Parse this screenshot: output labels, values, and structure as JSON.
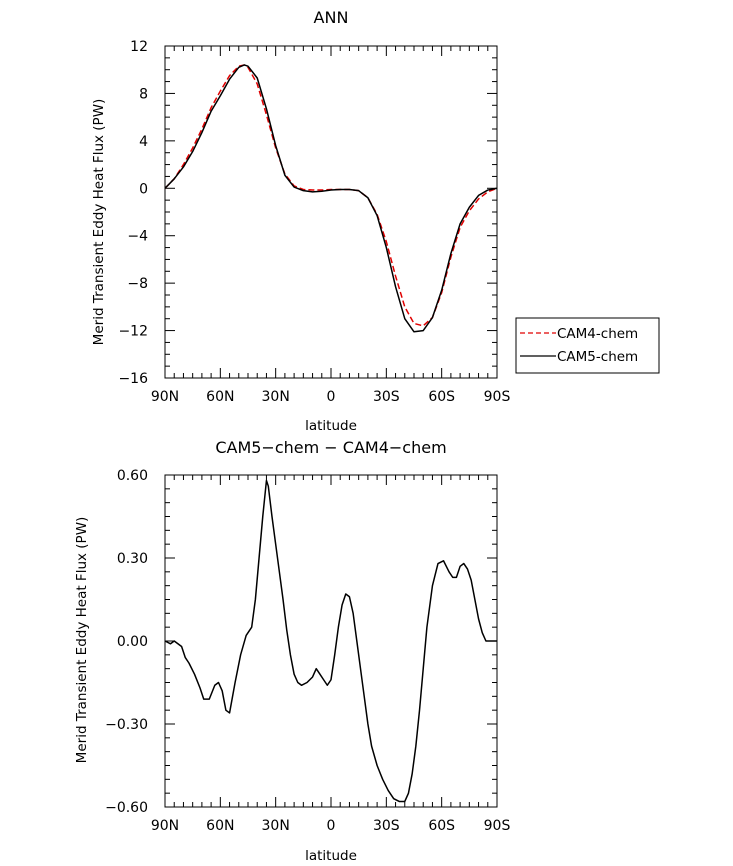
{
  "chart_data": [
    {
      "type": "line",
      "title": "ANN",
      "xlabel": "latitude",
      "ylabel": "Merid Transient Eddy Heat Flux (PW)",
      "xlim": [
        -90,
        90
      ],
      "ylim": [
        -16,
        12
      ],
      "x_tick_values": [
        -90,
        -60,
        -30,
        0,
        30,
        60,
        90
      ],
      "x_tick_labels": [
        "90N",
        "60N",
        "30N",
        "0",
        "30S",
        "60S",
        "90S"
      ],
      "y_tick_values": [
        -16,
        -12,
        -8,
        -4,
        0,
        4,
        8,
        12
      ],
      "y_tick_labels": [
        "−16",
        "−12",
        "−8",
        "−4",
        "0",
        "4",
        "8",
        "12"
      ],
      "legend_position": "right",
      "series": [
        {
          "name": "CAM4-chem",
          "color": "#e00000",
          "dash": true,
          "x": [
            -90,
            -85,
            -80,
            -75,
            -70,
            -65,
            -60,
            -55,
            -50,
            -47,
            -45,
            -40,
            -35,
            -30,
            -25,
            -20,
            -15,
            -10,
            -5,
            0,
            5,
            10,
            15,
            20,
            25,
            30,
            35,
            40,
            45,
            50,
            55,
            60,
            65,
            70,
            75,
            80,
            85,
            90
          ],
          "y": [
            0,
            0.8,
            2.0,
            3.4,
            5.0,
            6.8,
            8.2,
            9.5,
            10.3,
            10.4,
            10.2,
            8.8,
            6.2,
            3.4,
            1.2,
            0.2,
            -0.1,
            -0.15,
            -0.15,
            -0.1,
            -0.1,
            -0.1,
            -0.2,
            -0.8,
            -2.2,
            -4.5,
            -7.4,
            -10.0,
            -11.4,
            -11.6,
            -10.9,
            -8.8,
            -5.8,
            -3.3,
            -1.9,
            -0.9,
            -0.3,
            0
          ]
        },
        {
          "name": "CAM5-chem",
          "color": "#000000",
          "dash": false,
          "x": [
            -90,
            -85,
            -80,
            -75,
            -70,
            -65,
            -60,
            -55,
            -50,
            -47,
            -45,
            -40,
            -35,
            -30,
            -25,
            -20,
            -15,
            -10,
            -5,
            0,
            5,
            10,
            15,
            20,
            25,
            30,
            35,
            40,
            45,
            50,
            55,
            60,
            65,
            70,
            75,
            80,
            85,
            90
          ],
          "y": [
            0,
            0.8,
            1.8,
            3.1,
            4.7,
            6.5,
            7.8,
            9.2,
            10.2,
            10.4,
            10.3,
            9.3,
            6.7,
            3.6,
            1.1,
            0.1,
            -0.2,
            -0.3,
            -0.25,
            -0.15,
            -0.1,
            -0.1,
            -0.2,
            -0.8,
            -2.3,
            -5.0,
            -8.3,
            -11.0,
            -12.1,
            -12.0,
            -10.9,
            -8.6,
            -5.5,
            -3.0,
            -1.6,
            -0.6,
            -0.15,
            0
          ]
        }
      ]
    },
    {
      "type": "line",
      "title": "CAM5−chem − CAM4−chem",
      "xlabel": "latitude",
      "ylabel": "Merid Transient Eddy Heat Flux (PW)",
      "xlim": [
        -90,
        90
      ],
      "ylim": [
        -0.6,
        0.6
      ],
      "x_tick_values": [
        -90,
        -60,
        -30,
        0,
        30,
        60,
        90
      ],
      "x_tick_labels": [
        "90N",
        "60N",
        "30N",
        "0",
        "30S",
        "60S",
        "90S"
      ],
      "y_tick_values": [
        -0.6,
        -0.3,
        0,
        0.3,
        0.6
      ],
      "y_tick_labels": [
        "−0.60",
        "−0.30",
        "0.00",
        "0.30",
        "0.60"
      ],
      "series": [
        {
          "color": "#000000",
          "dash": false,
          "x": [
            -90,
            -87,
            -85,
            -83,
            -81,
            -79,
            -77,
            -74,
            -71,
            -69,
            -66,
            -63,
            -61,
            -59,
            -57,
            -55,
            -52,
            -49,
            -46,
            -43,
            -41,
            -39,
            -37,
            -35,
            -34,
            -32,
            -30,
            -28,
            -26,
            -24,
            -22,
            -20,
            -18,
            -16,
            -13,
            -10,
            -8,
            -6,
            -4,
            -2,
            0,
            2,
            4,
            6,
            8,
            10,
            12,
            14,
            16,
            18,
            20,
            22,
            25,
            28,
            31,
            34,
            37,
            40,
            42,
            44,
            46,
            48,
            50,
            52,
            55,
            58,
            61,
            64,
            66,
            68,
            70,
            72,
            74,
            76,
            78,
            80,
            82,
            84,
            86,
            88,
            90
          ],
          "y": [
            0,
            -0.01,
            0,
            -0.01,
            -0.02,
            -0.06,
            -0.08,
            -0.12,
            -0.17,
            -0.21,
            -0.21,
            -0.16,
            -0.15,
            -0.18,
            -0.25,
            -0.26,
            -0.15,
            -0.05,
            0.02,
            0.05,
            0.15,
            0.3,
            0.45,
            0.58,
            0.56,
            0.45,
            0.35,
            0.25,
            0.15,
            0.04,
            -0.05,
            -0.12,
            -0.15,
            -0.16,
            -0.15,
            -0.13,
            -0.1,
            -0.12,
            -0.14,
            -0.16,
            -0.14,
            -0.05,
            0.05,
            0.13,
            0.17,
            0.16,
            0.1,
            0.0,
            -0.1,
            -0.2,
            -0.3,
            -0.38,
            -0.45,
            -0.5,
            -0.54,
            -0.57,
            -0.58,
            -0.58,
            -0.55,
            -0.48,
            -0.38,
            -0.25,
            -0.1,
            0.05,
            0.2,
            0.28,
            0.29,
            0.25,
            0.23,
            0.23,
            0.27,
            0.28,
            0.26,
            0.22,
            0.15,
            0.08,
            0.03,
            0,
            0,
            0,
            0
          ]
        }
      ]
    }
  ]
}
